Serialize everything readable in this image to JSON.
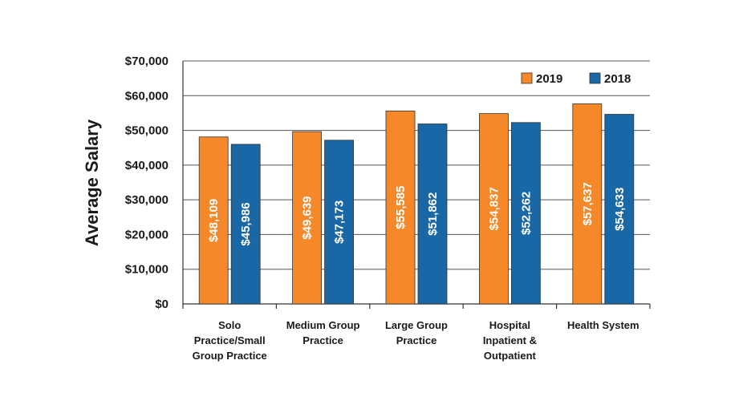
{
  "chart_data": {
    "type": "bar",
    "title": "",
    "xlabel": "",
    "ylabel": "Average Salary",
    "ylim": [
      0,
      70000
    ],
    "ytick_step": 10000,
    "ytick_labels": [
      "$0",
      "$10,000",
      "$20,000",
      "$30,000",
      "$40,000",
      "$50,000",
      "$60,000",
      "$70,000"
    ],
    "grid": true,
    "legend_position": "top-right",
    "categories": [
      [
        "Solo",
        "Practice/Small",
        "Group Practice"
      ],
      [
        "Medium Group",
        "Practice"
      ],
      [
        "Large Group",
        "Practice"
      ],
      [
        "Hospital",
        "Inpatient &",
        "Outpatient"
      ],
      [
        "Health System"
      ]
    ],
    "series": [
      {
        "name": "2019",
        "color": "#f5892a",
        "values": [
          48109,
          49639,
          55585,
          54837,
          57637
        ],
        "labels": [
          "$48,109",
          "$49,639",
          "$55,585",
          "$54,837",
          "$57,637"
        ]
      },
      {
        "name": "2018",
        "color": "#1a67a5",
        "values": [
          45986,
          47173,
          51862,
          52262,
          54633
        ],
        "labels": [
          "$45,986",
          "$47,173",
          "$51,862",
          "$52,262",
          "$54,633"
        ]
      }
    ]
  }
}
